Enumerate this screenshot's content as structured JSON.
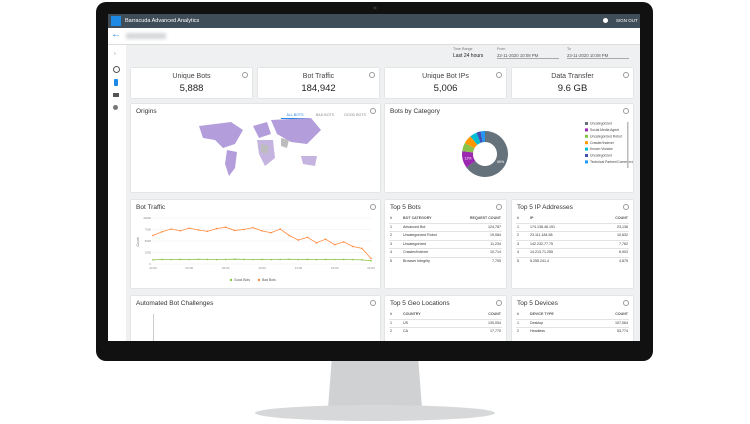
{
  "header": {
    "title": "Barracuda Advanced Analytics",
    "sign_out": "SIGN OUT"
  },
  "time_range": {
    "label": "Time Range",
    "value": "Last 24 hours",
    "from_label": "From",
    "from": "22-11-2020 10:08 PM",
    "to_label": "To",
    "to": "23-11-2020 10:08 PM"
  },
  "cards": [
    {
      "title": "Unique Bots",
      "value": "5,888"
    },
    {
      "title": "Bot Traffic",
      "value": "184,942"
    },
    {
      "title": "Unique Bot IPs",
      "value": "5,006"
    },
    {
      "title": "Data Transfer",
      "value": "9.6 GB"
    }
  ],
  "origins": {
    "title": "Origins",
    "tabs": [
      "ALL BOTS",
      "BAD BOTS",
      "GOOD BOTS"
    ]
  },
  "chart_data": [
    {
      "type": "pie",
      "title": "Bots by Category",
      "categories": [
        "Uncategorized",
        "Social Media Agent",
        "Uncategorized Robot",
        "Crawler/Indexer",
        "Known Violator",
        "Uncategorized",
        "Technical Partner/Commercial Bot"
      ],
      "values": [
        65,
        12,
        6,
        6,
        5,
        3,
        3
      ],
      "value_labels": [
        "65%",
        "12%",
        null,
        null,
        null,
        null,
        null
      ],
      "colors": [
        "#66727b",
        "#9c27b0",
        "#8bc34a",
        "#ff9800",
        "#00bcd4",
        "#3f51b5",
        "#2196f3"
      ]
    },
    {
      "type": "line",
      "title": "Bot Traffic",
      "y_label": "Count",
      "categories": [
        "22:00",
        null,
        null,
        null,
        "02:00",
        null,
        null,
        null,
        "06:00",
        null,
        null,
        null,
        "10:00",
        null,
        null,
        null,
        "14:00",
        null,
        null,
        null,
        "18:00",
        null,
        null,
        null,
        "22:00"
      ],
      "ylim": [
        0,
        10000
      ],
      "yticks": [
        0,
        2500,
        5000,
        7500,
        10000
      ],
      "grid": true,
      "series": [
        {
          "name": "Good Bots",
          "color": "#8bc34a",
          "values": [
            900,
            1000,
            950,
            1000,
            980,
            1020,
            1000,
            950,
            1000,
            1050,
            1000,
            980,
            1000,
            950,
            1000,
            1020,
            980,
            1000,
            950,
            1000,
            980,
            1000,
            950,
            900,
            700
          ]
        },
        {
          "name": "Bad Bots",
          "color": "#ff8a3d",
          "values": [
            6200,
            7000,
            7600,
            7200,
            7800,
            7400,
            7100,
            7700,
            8000,
            7300,
            7500,
            7900,
            7200,
            6800,
            7600,
            6200,
            5200,
            5800,
            4600,
            5400,
            4200,
            4800,
            3800,
            3400,
            1200
          ]
        }
      ]
    }
  ],
  "tables": [
    {
      "title": "Top 5 Bots",
      "columns": [
        "#",
        "BOT CATEGORY",
        "REQUEST COUNT"
      ],
      "rows": [
        [
          "1",
          "Advanced Bot",
          "124,787"
        ],
        [
          "2",
          "Uncategorized Robot",
          "19,084"
        ],
        [
          "3",
          "Uncategorized",
          "11,234"
        ],
        [
          "4",
          "Crawler/Indexer",
          "10,714"
        ],
        [
          "5",
          "Browser Integrity",
          "7,705"
        ]
      ]
    },
    {
      "title": "Top 5 IP Addresses",
      "columns": [
        "#",
        "IP",
        "COUNT"
      ],
      "rows": [
        [
          "1",
          "174.138.46.191",
          "23,136"
        ],
        [
          "2",
          "23.111.184.58",
          "10,632"
        ],
        [
          "3",
          "142.232.77.75",
          "7,762"
        ],
        [
          "4",
          "14.213.71.255",
          "6,903"
        ],
        [
          "5",
          "5.255.241.4",
          "4,875"
        ]
      ]
    },
    {
      "title": "Top 5 Geo Locations",
      "columns": [
        "#",
        "COUNTRY",
        "COUNT"
      ],
      "rows": [
        [
          "1",
          "US",
          "130,054"
        ],
        [
          "2",
          "CA",
          "17,770"
        ]
      ]
    },
    {
      "title": "Top 5 Devices",
      "columns": [
        "#",
        "DEVICE TYPE",
        "COUNT"
      ],
      "rows": [
        [
          "1",
          "Desktop",
          "107,064"
        ],
        [
          "2",
          "Headless",
          "53,774"
        ]
      ]
    }
  ],
  "automated_challenges": {
    "title": "Automated Bot Challenges"
  }
}
